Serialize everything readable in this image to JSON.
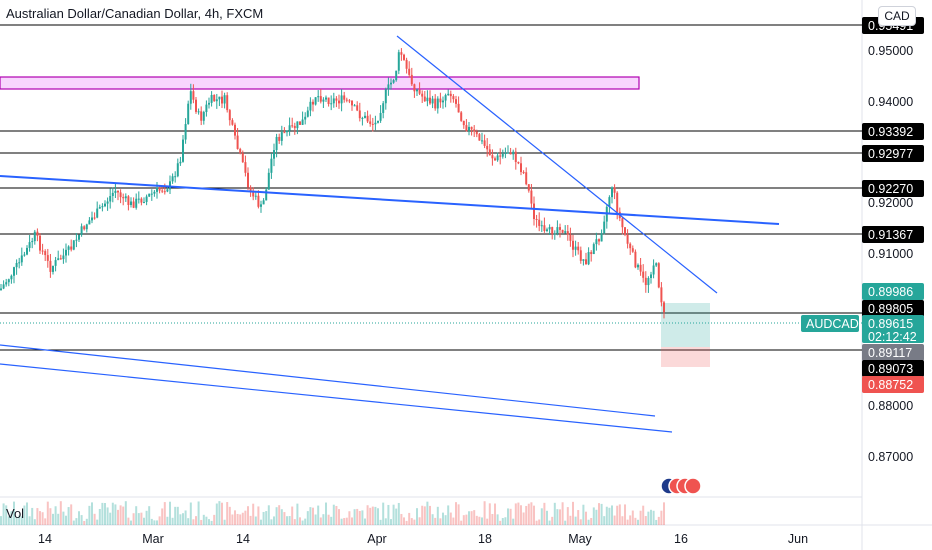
{
  "chart_data": {
    "type": "candlestick",
    "title": "Australian Dollar/Canadian Dollar, 4h, FXCM",
    "currency": "CAD",
    "volume_label": "Vol",
    "y_ticks": [
      "0.95000",
      "0.94000",
      "0.92000",
      "0.91000",
      "0.88000",
      "0.87000"
    ],
    "x_ticks": [
      "14",
      "Mar",
      "14",
      "Apr",
      "18",
      "May",
      "16",
      "Jun"
    ],
    "horizontal_levels": [
      "0.95491",
      "0.93392",
      "0.92977",
      "0.92270",
      "0.91367",
      "0.89805",
      "0.89117"
    ],
    "symbol": "AUDCAD",
    "last_price": "0.89615",
    "countdown": "02:12:42",
    "target_price": "0.89986",
    "entry_price": "0.89073",
    "stop_price": "0.88752",
    "colors": {
      "up": "#26a69a",
      "down": "#ef5350",
      "trendline": "#2962ff",
      "zone": "#e040fb"
    }
  }
}
